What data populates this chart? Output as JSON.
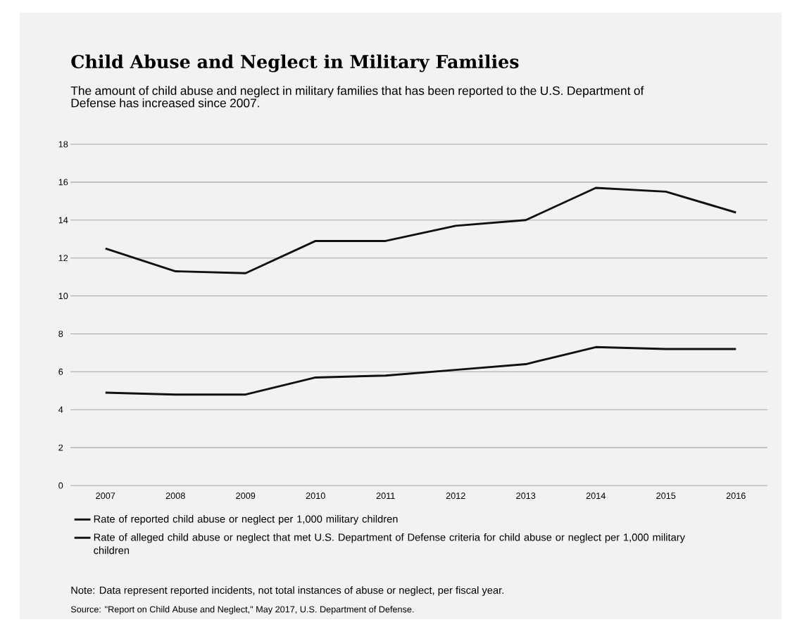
{
  "chart_data": {
    "type": "line",
    "title": "Child Abuse and Neglect in Military Families",
    "subtitle": "The amount of child abuse and neglect in military families that has been reported to the U.S. Department of Defense has increased since 2007.",
    "categories": [
      "2007",
      "2008",
      "2009",
      "2010",
      "2011",
      "2012",
      "2013",
      "2014",
      "2015",
      "2016"
    ],
    "series": [
      {
        "name": "Rate of reported child abuse or neglect per 1,000 military children",
        "color": "#111111",
        "values": [
          12.5,
          11.3,
          11.2,
          12.9,
          12.9,
          13.7,
          14.0,
          15.7,
          15.5,
          14.4
        ]
      },
      {
        "name": "Rate of alleged child abuse or neglect that met U.S. Department of Defense criteria for child abuse or neglect per 1,000 military children",
        "color": "#111111",
        "values": [
          4.9,
          4.8,
          4.8,
          5.7,
          5.8,
          6.1,
          6.4,
          7.3,
          7.2,
          7.2
        ]
      }
    ],
    "ylim": [
      0,
      18
    ],
    "yticks": [
      0,
      2,
      4,
      6,
      8,
      10,
      12,
      14,
      16,
      18
    ],
    "grid": "y",
    "legend": "bottom",
    "marker": "none",
    "line_style": "solid",
    "annotations": [
      "Note: Data represent reported incidents, not total instances of abuse or neglect, per fiscal year.",
      "Source: \"Report on Child Abuse and Neglect,\" May 2017, U.S. Department of Defense."
    ]
  }
}
